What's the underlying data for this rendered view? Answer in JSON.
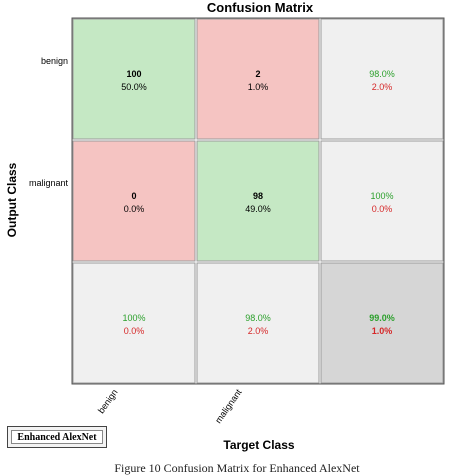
{
  "chart_data": {
    "type": "heatmap",
    "title": "Confusion Matrix",
    "xlabel": "Target Class",
    "ylabel": "Output Class",
    "classes": [
      "benign",
      "malignant"
    ],
    "cells": [
      [
        {
          "count": "100",
          "percent": "50.0%",
          "kind": "correct"
        },
        {
          "count": "2",
          "percent": "1.0%",
          "kind": "error"
        },
        {
          "top": "98.0%",
          "bottom": "2.0%",
          "kind": "row-summary"
        }
      ],
      [
        {
          "count": "0",
          "percent": "0.0%",
          "kind": "error"
        },
        {
          "count": "98",
          "percent": "49.0%",
          "kind": "correct"
        },
        {
          "top": "100%",
          "bottom": "0.0%",
          "kind": "row-summary"
        }
      ],
      [
        {
          "top": "100%",
          "bottom": "0.0%",
          "kind": "col-summary"
        },
        {
          "top": "98.0%",
          "bottom": "2.0%",
          "kind": "col-summary"
        },
        {
          "top": "99.0%",
          "bottom": "1.0%",
          "kind": "overall"
        }
      ]
    ]
  },
  "colors": {
    "correct": "#c5e8c4",
    "error": "#f5c4c2",
    "summary": "#f0f0f0",
    "overall": "#d6d6d6",
    "green_text": "#2ca02c",
    "red_text": "#d62728"
  },
  "badge_label": "Enhanced AlexNet",
  "caption": "Figure 10 Confusion Matrix for Enhanced AlexNet"
}
